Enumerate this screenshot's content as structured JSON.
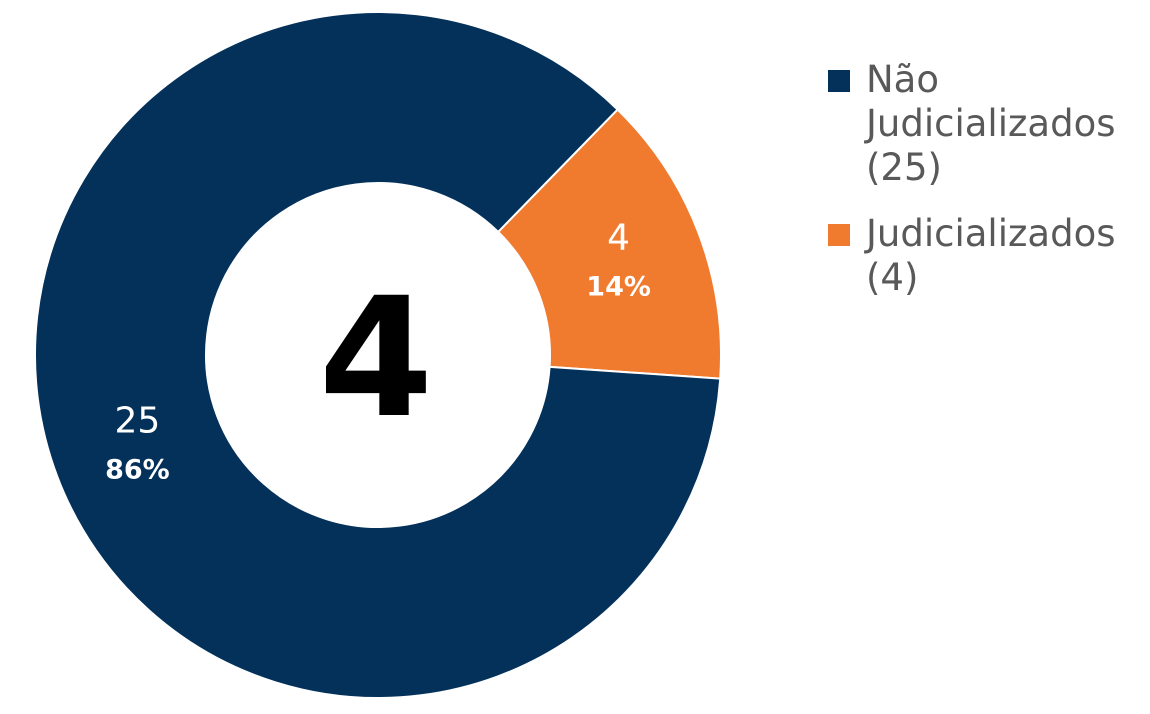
{
  "chart_data": {
    "type": "pie",
    "variant": "donut",
    "center_label": "4",
    "slices": [
      {
        "label": "Judicializados",
        "legend": "Judicializados (4)",
        "value": 4,
        "percent_label": "14%",
        "color": "#F07A2E"
      },
      {
        "label": "Não Judicializados",
        "legend": "Não Judicializados (25)",
        "value": 25,
        "percent_label": "86%",
        "color": "#03315A"
      }
    ],
    "legend_order": [
      1,
      0
    ],
    "legend_position": "right"
  }
}
